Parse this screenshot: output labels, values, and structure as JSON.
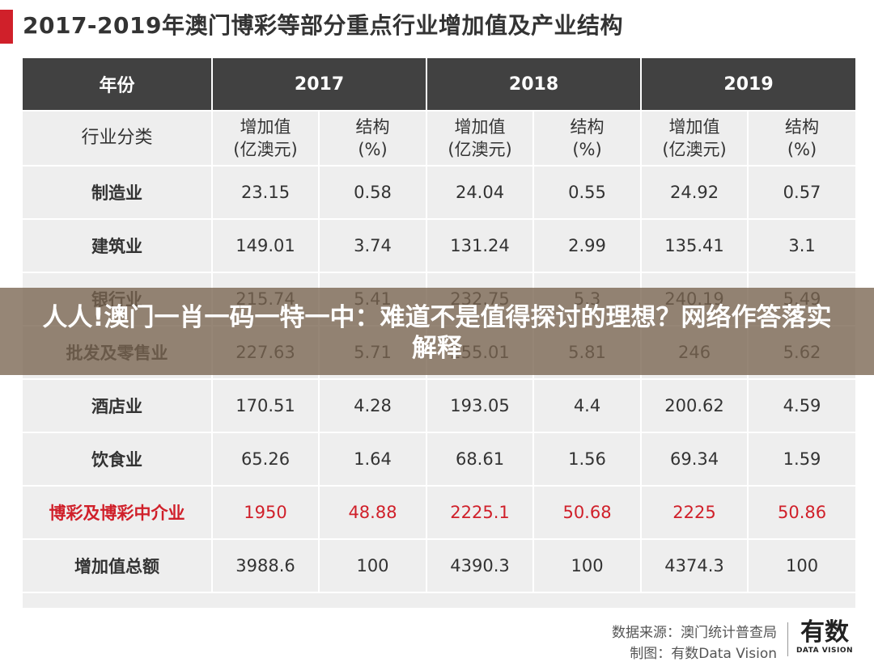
{
  "title": "2017-2019年澳门博彩等部分重点行业增加值及产业结构",
  "header": {
    "year_label": "年份",
    "years": [
      "2017",
      "2018",
      "2019"
    ]
  },
  "subheader": {
    "category_label": "行业分类",
    "value_label": [
      "增加值",
      "(亿澳元)"
    ],
    "share_label": [
      "结构",
      "(%)"
    ]
  },
  "rows": [
    {
      "category": "制造业",
      "values": [
        "23.15",
        "0.58",
        "24.04",
        "0.55",
        "24.92",
        "0.57"
      ]
    },
    {
      "category": "建筑业",
      "values": [
        "149.01",
        "3.74",
        "131.24",
        "2.99",
        "135.41",
        "3.1"
      ]
    },
    {
      "category": "银行业",
      "values": [
        "215.74",
        "5.41",
        "232.75",
        "5.3",
        "240.19",
        "5.49"
      ]
    },
    {
      "category": "批发及零售业",
      "values": [
        "227.63",
        "5.71",
        "255.01",
        "5.81",
        "246",
        "5.62"
      ]
    },
    {
      "category": "酒店业",
      "values": [
        "170.51",
        "4.28",
        "193.05",
        "4.4",
        "200.62",
        "4.59"
      ]
    },
    {
      "category": "饮食业",
      "values": [
        "65.26",
        "1.64",
        "68.61",
        "1.56",
        "69.34",
        "1.59"
      ]
    },
    {
      "category": "博彩及博彩中介业",
      "values": [
        "1950",
        "48.88",
        "2225.1",
        "50.68",
        "2225",
        "50.86"
      ],
      "highlight": true
    },
    {
      "category": "增加值总额",
      "values": [
        "3988.6",
        "100",
        "4390.3",
        "100",
        "4374.3",
        "100"
      ]
    }
  ],
  "footer": {
    "source": "数据来源：澳门统计普查局",
    "maker": "制图：有数Data Vision"
  },
  "logo": {
    "main": "有数",
    "sub": "DATA VISION"
  },
  "overlay": {
    "text": "人人!澳门一肖一码一特一中：难道不是值得探讨的理想？网络作答落实解释"
  },
  "colors": {
    "accent": "#d0202a",
    "header_bg": "#414141",
    "cell_bg": "#eeeeee"
  }
}
